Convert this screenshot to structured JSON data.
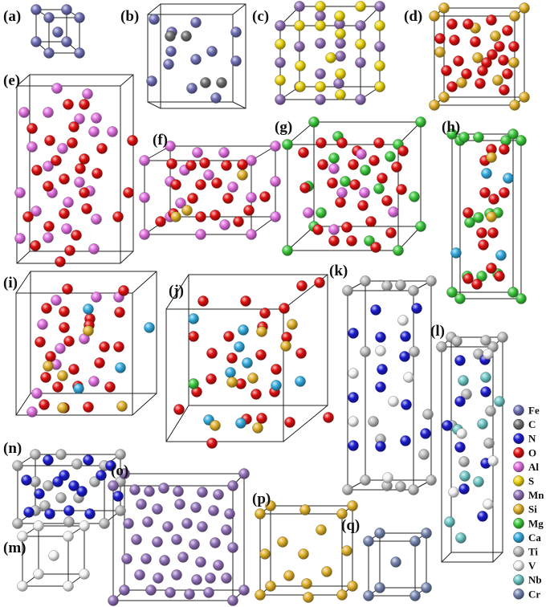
{
  "panels": [
    {
      "id": "a",
      "label": "(a)"
    },
    {
      "id": "b",
      "label": "(b)"
    },
    {
      "id": "c",
      "label": "(c)"
    },
    {
      "id": "d",
      "label": "(d)"
    },
    {
      "id": "e",
      "label": "(e)"
    },
    {
      "id": "f",
      "label": "(f)"
    },
    {
      "id": "g",
      "label": "(g)"
    },
    {
      "id": "h",
      "label": "(h)"
    },
    {
      "id": "i",
      "label": "(i)"
    },
    {
      "id": "j",
      "label": "(j)"
    },
    {
      "id": "k",
      "label": "(k)"
    },
    {
      "id": "l",
      "label": "(l)"
    },
    {
      "id": "m",
      "label": "(m)"
    },
    {
      "id": "n",
      "label": "(n)"
    },
    {
      "id": "o",
      "label": "(o)"
    },
    {
      "id": "p",
      "label": "(p)"
    },
    {
      "id": "q",
      "label": "(q)"
    }
  ],
  "legend": [
    {
      "element": "Fe",
      "color": "#6f6fb5"
    },
    {
      "element": "C",
      "color": "#6e6e6e"
    },
    {
      "element": "N",
      "color": "#1c1ccf"
    },
    {
      "element": "O",
      "color": "#e01010"
    },
    {
      "element": "Al",
      "color": "#df6fdf"
    },
    {
      "element": "S",
      "color": "#ecd50e"
    },
    {
      "element": "Mn",
      "color": "#9170b8"
    },
    {
      "element": "Si",
      "color": "#e0b02a"
    },
    {
      "element": "Mg",
      "color": "#3cc83c"
    },
    {
      "element": "Ca",
      "color": "#33aadd"
    },
    {
      "element": "Ti",
      "color": "#bdbdbd"
    },
    {
      "element": "V",
      "color": "#f4f4f4"
    },
    {
      "element": "Nb",
      "color": "#6ec6c6"
    },
    {
      "element": "Cr",
      "color": "#7585b0"
    }
  ]
}
